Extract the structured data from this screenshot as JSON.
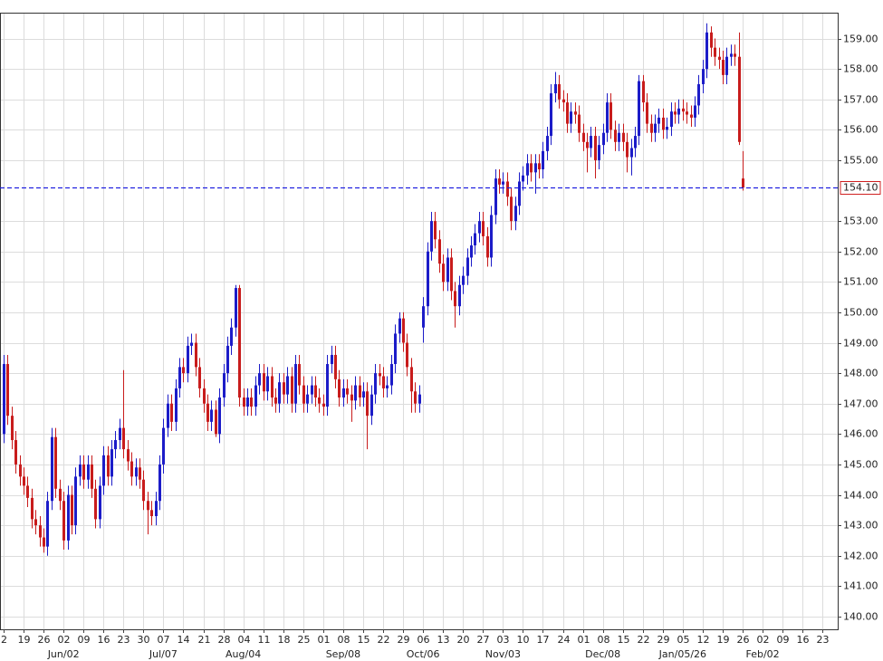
{
  "chart_data": {
    "type": "candlestick",
    "up_color": "#1c1cc8",
    "down_color": "#c81c1c",
    "grid": true,
    "xlim": [
      -0.9,
      208.8
    ],
    "ylim": [
      139.58,
      159.85
    ],
    "yticks": [
      {
        "value": 140,
        "label": "140.00"
      },
      {
        "value": 141,
        "label": "141.00"
      },
      {
        "value": 142,
        "label": "142.00"
      },
      {
        "value": 143,
        "label": "143.00"
      },
      {
        "value": 144,
        "label": "144.00"
      },
      {
        "value": 145,
        "label": "145.00"
      },
      {
        "value": 146,
        "label": "146.00"
      },
      {
        "value": 147,
        "label": "147.00"
      },
      {
        "value": 148,
        "label": "148.00"
      },
      {
        "value": 149,
        "label": "149.00"
      },
      {
        "value": 150,
        "label": "150.00"
      },
      {
        "value": 151,
        "label": "151.00"
      },
      {
        "value": 152,
        "label": "152.00"
      },
      {
        "value": 153,
        "label": "153.00"
      },
      {
        "value": 155,
        "label": "155.00"
      },
      {
        "value": 156,
        "label": "156.00"
      },
      {
        "value": 157,
        "label": "157.00"
      },
      {
        "value": 158,
        "label": "158.00"
      },
      {
        "value": 159,
        "label": "159.00"
      }
    ],
    "xticks": [
      {
        "value": 0,
        "label": "2"
      },
      {
        "value": 5,
        "label": "19"
      },
      {
        "value": 10,
        "label": "26"
      },
      {
        "value": 15,
        "label": "02"
      },
      {
        "value": 20,
        "label": "09"
      },
      {
        "value": 25,
        "label": "16"
      },
      {
        "value": 30,
        "label": "23"
      },
      {
        "value": 35,
        "label": "30"
      },
      {
        "value": 40,
        "label": "07"
      },
      {
        "value": 45,
        "label": "14"
      },
      {
        "value": 50,
        "label": "21"
      },
      {
        "value": 55,
        "label": "28"
      },
      {
        "value": 60,
        "label": "04"
      },
      {
        "value": 65,
        "label": "11"
      },
      {
        "value": 70,
        "label": "18"
      },
      {
        "value": 75,
        "label": "25"
      },
      {
        "value": 80,
        "label": "01"
      },
      {
        "value": 85,
        "label": "08"
      },
      {
        "value": 90,
        "label": "15"
      },
      {
        "value": 95,
        "label": "22"
      },
      {
        "value": 100,
        "label": "29"
      },
      {
        "value": 105,
        "label": "06"
      },
      {
        "value": 110,
        "label": "13"
      },
      {
        "value": 115,
        "label": "20"
      },
      {
        "value": 120,
        "label": "27"
      },
      {
        "value": 125,
        "label": "03"
      },
      {
        "value": 130,
        "label": "10"
      },
      {
        "value": 135,
        "label": "17"
      },
      {
        "value": 140,
        "label": "24"
      },
      {
        "value": 145,
        "label": "01"
      },
      {
        "value": 150,
        "label": "08"
      },
      {
        "value": 155,
        "label": "15"
      },
      {
        "value": 160,
        "label": "22"
      },
      {
        "value": 165,
        "label": "29"
      },
      {
        "value": 170,
        "label": "05"
      },
      {
        "value": 175,
        "label": "12"
      },
      {
        "value": 180,
        "label": "19"
      },
      {
        "value": 185,
        "label": "26"
      },
      {
        "value": 190,
        "label": "02"
      },
      {
        "value": 195,
        "label": "09"
      },
      {
        "value": 200,
        "label": "16"
      },
      {
        "value": 205,
        "label": "23"
      }
    ],
    "month_labels": [
      {
        "value": 15,
        "label": "Jun/02"
      },
      {
        "value": 40,
        "label": "Jul/07"
      },
      {
        "value": 60,
        "label": "Aug/04"
      },
      {
        "value": 85,
        "label": "Sep/08"
      },
      {
        "value": 105,
        "label": "Oct/06"
      },
      {
        "value": 125,
        "label": "Nov/03"
      },
      {
        "value": 150,
        "label": "Dec/08"
      },
      {
        "value": 170,
        "label": "Jan/05/26"
      },
      {
        "value": 190,
        "label": "Feb/02"
      }
    ],
    "last_price": {
      "value": 154.1,
      "label": "154.10",
      "color": "#2020e0"
    },
    "open": [
      146.0,
      148.3,
      146.6,
      145.8,
      145.0,
      144.6,
      144.3,
      143.9,
      143.2,
      143.0,
      142.6,
      142.3,
      143.8,
      145.9,
      144.2,
      143.8,
      142.5,
      144.0,
      143.0,
      144.6,
      145.0,
      144.5,
      145.0,
      144.2,
      143.2,
      144.3,
      145.3,
      144.6,
      145.5,
      145.8,
      146.2,
      145.5,
      145.1,
      144.6,
      144.9,
      144.5,
      143.8,
      143.5,
      143.3,
      143.8,
      145.0,
      146.2,
      147.0,
      146.4,
      147.5,
      148.2,
      148.0,
      148.9,
      149.0,
      148.2,
      147.5,
      147.0,
      146.4,
      146.8,
      146.0,
      147.2,
      148.0,
      148.9,
      149.5,
      150.8,
      147.2,
      146.9,
      147.2,
      146.9,
      147.6,
      148.0,
      147.4,
      147.9,
      147.2,
      147.0,
      147.7,
      147.3,
      147.9,
      147.0,
      148.3,
      147.6,
      147.0,
      147.3,
      147.6,
      147.2,
      147.0,
      146.9,
      148.3,
      148.6,
      147.8,
      147.2,
      147.5,
      147.3,
      147.1,
      147.6,
      147.2,
      147.4,
      146.6,
      147.3,
      148.0,
      147.9,
      147.5,
      147.6,
      148.3,
      149.3,
      149.8,
      149.0,
      148.2,
      147.4,
      147.0,
      149.5,
      150.2,
      152.0,
      153.0,
      152.4,
      151.6,
      151.0,
      151.8,
      150.7,
      150.2,
      150.9,
      151.2,
      151.8,
      152.2,
      152.6,
      153.0,
      152.5,
      151.8,
      153.2,
      154.4,
      154.2,
      154.3,
      153.8,
      153.0,
      153.5,
      154.3,
      154.5,
      154.9,
      154.6,
      154.9,
      154.7,
      155.3,
      155.8,
      157.2,
      157.5,
      157.0,
      156.9,
      156.2,
      156.6,
      156.5,
      155.9,
      155.6,
      155.4,
      155.8,
      155.0,
      155.5,
      155.9,
      156.9,
      156.0,
      155.6,
      155.9,
      155.6,
      155.1,
      155.4,
      155.8,
      157.6,
      156.9,
      156.2,
      155.9,
      156.2,
      156.4,
      156.0,
      156.1,
      156.6,
      156.5,
      156.7,
      156.6,
      156.5,
      156.4,
      156.8,
      157.5,
      158.0,
      159.2,
      158.7,
      158.4,
      158.3,
      157.8,
      158.4,
      158.5,
      158.4,
      154.4
    ],
    "high": [
      148.6,
      148.6,
      146.9,
      146.1,
      145.3,
      144.9,
      144.6,
      144.2,
      143.5,
      143.3,
      142.9,
      144.1,
      146.2,
      146.2,
      144.5,
      144.1,
      144.3,
      144.3,
      144.9,
      145.3,
      145.3,
      145.3,
      145.3,
      144.5,
      144.6,
      145.6,
      145.6,
      145.8,
      146.1,
      146.5,
      148.1,
      145.8,
      145.4,
      145.2,
      145.2,
      144.8,
      144.1,
      143.8,
      144.1,
      145.3,
      146.5,
      147.3,
      147.3,
      147.8,
      148.5,
      148.5,
      149.2,
      149.3,
      149.3,
      148.5,
      147.8,
      147.3,
      147.1,
      147.1,
      147.5,
      148.3,
      149.2,
      149.8,
      150.9,
      150.9,
      147.5,
      147.5,
      147.5,
      147.9,
      148.3,
      148.3,
      148.2,
      148.2,
      147.5,
      148.0,
      148.0,
      148.2,
      148.2,
      148.6,
      148.6,
      147.9,
      147.6,
      147.9,
      147.9,
      147.5,
      147.3,
      148.6,
      148.9,
      148.9,
      148.1,
      147.8,
      147.8,
      147.6,
      147.9,
      147.9,
      147.7,
      147.7,
      147.6,
      148.3,
      148.3,
      148.2,
      147.9,
      148.6,
      149.6,
      150.0,
      150.0,
      149.3,
      148.5,
      147.7,
      147.6,
      150.5,
      152.3,
      153.3,
      153.3,
      152.7,
      151.9,
      152.1,
      152.1,
      151.0,
      151.2,
      151.5,
      152.1,
      152.5,
      152.9,
      153.3,
      153.3,
      152.8,
      153.5,
      154.7,
      154.7,
      154.6,
      154.6,
      154.1,
      153.8,
      154.6,
      154.8,
      155.2,
      155.2,
      155.2,
      155.2,
      155.6,
      156.1,
      157.5,
      157.9,
      157.8,
      157.3,
      157.2,
      156.9,
      156.9,
      156.8,
      156.2,
      155.9,
      156.1,
      156.1,
      155.8,
      156.2,
      157.2,
      157.2,
      156.3,
      156.2,
      156.2,
      155.9,
      155.7,
      156.1,
      157.8,
      157.8,
      157.2,
      156.5,
      156.5,
      156.7,
      156.7,
      156.4,
      156.9,
      156.9,
      157.0,
      157.0,
      156.9,
      156.8,
      157.1,
      157.8,
      158.3,
      159.5,
      159.4,
      159.0,
      158.7,
      158.6,
      158.7,
      158.8,
      158.8,
      159.2,
      155.3
    ],
    "low": [
      145.7,
      146.3,
      145.5,
      144.7,
      144.3,
      144.0,
      143.6,
      142.9,
      142.7,
      142.3,
      142.1,
      142.0,
      143.5,
      143.9,
      143.5,
      142.2,
      142.2,
      142.7,
      142.7,
      144.3,
      144.2,
      144.2,
      143.9,
      142.9,
      142.9,
      144.0,
      144.3,
      144.3,
      145.2,
      145.5,
      145.2,
      144.8,
      144.3,
      144.3,
      144.2,
      143.5,
      142.7,
      143.0,
      143.0,
      143.5,
      144.7,
      145.9,
      146.1,
      146.1,
      147.2,
      147.7,
      147.7,
      148.6,
      147.9,
      147.2,
      146.7,
      146.1,
      146.1,
      145.9,
      145.7,
      146.9,
      147.7,
      148.6,
      149.2,
      146.9,
      146.6,
      146.6,
      146.6,
      146.6,
      147.3,
      147.1,
      147.1,
      146.9,
      146.7,
      146.7,
      147.0,
      147.0,
      146.7,
      146.7,
      147.3,
      146.7,
      146.7,
      147.0,
      146.9,
      146.7,
      146.6,
      146.6,
      148.0,
      147.5,
      146.9,
      146.9,
      147.0,
      146.4,
      146.8,
      146.9,
      146.9,
      145.5,
      146.3,
      147.0,
      147.6,
      147.2,
      147.2,
      147.3,
      148.0,
      149.0,
      148.7,
      147.9,
      146.7,
      146.7,
      146.7,
      149.0,
      149.9,
      151.7,
      152.1,
      151.3,
      150.7,
      150.7,
      150.4,
      149.5,
      149.9,
      150.6,
      150.9,
      151.5,
      151.9,
      152.3,
      152.2,
      151.5,
      151.5,
      152.9,
      153.9,
      153.9,
      153.5,
      152.7,
      152.7,
      153.2,
      154.0,
      154.2,
      154.3,
      153.9,
      154.4,
      154.4,
      155.0,
      155.5,
      156.9,
      156.7,
      156.6,
      155.9,
      155.9,
      156.2,
      155.6,
      155.3,
      154.6,
      155.1,
      154.4,
      154.7,
      155.2,
      155.6,
      155.7,
      155.3,
      155.3,
      155.3,
      154.6,
      154.5,
      155.1,
      155.5,
      156.6,
      155.9,
      155.6,
      155.6,
      155.9,
      155.7,
      155.7,
      155.8,
      156.2,
      156.2,
      156.3,
      156.2,
      156.1,
      156.1,
      156.5,
      157.2,
      157.7,
      158.4,
      158.1,
      158.0,
      157.5,
      157.5,
      158.1,
      158.1,
      155.5,
      154.0
    ],
    "close": [
      148.3,
      146.6,
      145.8,
      145.0,
      144.6,
      144.3,
      143.9,
      143.2,
      143.0,
      142.6,
      142.3,
      143.8,
      145.9,
      144.2,
      143.8,
      142.5,
      144.0,
      143.0,
      144.6,
      145.0,
      144.5,
      145.0,
      144.2,
      143.2,
      144.3,
      145.3,
      144.6,
      145.5,
      145.8,
      146.2,
      145.5,
      145.1,
      144.6,
      144.9,
      144.5,
      143.8,
      143.5,
      143.3,
      143.8,
      145.0,
      146.2,
      147.0,
      146.4,
      147.5,
      148.2,
      148.0,
      148.9,
      149.0,
      148.2,
      147.5,
      147.0,
      146.4,
      146.8,
      146.0,
      147.2,
      148.0,
      148.9,
      149.5,
      150.8,
      147.2,
      146.9,
      147.2,
      146.9,
      147.6,
      148.0,
      147.4,
      147.9,
      147.2,
      147.0,
      147.7,
      147.3,
      147.9,
      147.0,
      148.3,
      147.6,
      147.0,
      147.3,
      147.6,
      147.2,
      147.0,
      146.9,
      148.3,
      148.6,
      147.8,
      147.2,
      147.5,
      147.3,
      147.1,
      147.6,
      147.2,
      147.4,
      146.6,
      147.3,
      148.0,
      147.9,
      147.5,
      147.6,
      148.3,
      149.3,
      149.8,
      149.0,
      148.2,
      147.4,
      147.0,
      147.3,
      150.2,
      152.0,
      153.0,
      152.4,
      151.6,
      151.0,
      151.8,
      150.7,
      150.2,
      150.9,
      151.2,
      151.8,
      152.2,
      152.6,
      153.0,
      152.5,
      151.8,
      153.2,
      154.4,
      154.2,
      154.3,
      153.8,
      153.0,
      153.5,
      154.3,
      154.5,
      154.9,
      154.6,
      154.9,
      154.7,
      155.3,
      155.8,
      157.2,
      157.5,
      157.0,
      156.9,
      156.2,
      156.6,
      156.5,
      155.9,
      155.6,
      155.4,
      155.8,
      155.0,
      155.5,
      155.9,
      156.9,
      156.0,
      155.6,
      155.9,
      155.6,
      155.1,
      155.4,
      155.8,
      157.6,
      156.9,
      156.2,
      155.9,
      156.2,
      156.4,
      156.0,
      156.1,
      156.6,
      156.5,
      156.7,
      156.6,
      156.5,
      156.4,
      156.8,
      157.5,
      158.0,
      159.2,
      158.7,
      158.4,
      158.3,
      157.8,
      158.4,
      158.5,
      158.4,
      155.6,
      154.1
    ]
  }
}
